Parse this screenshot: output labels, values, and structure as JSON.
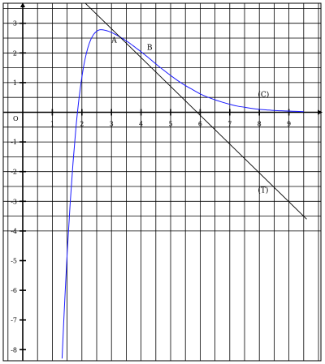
{
  "chart_data": {
    "type": "line",
    "title": "",
    "xlabel": "",
    "ylabel": "",
    "xlim": [
      -0.7,
      9.8
    ],
    "ylim": [
      -8.3,
      3.7
    ],
    "grid": true,
    "origin_label": "O",
    "x_ticks": [
      {
        "value": 1,
        "label": "1"
      },
      {
        "value": 2,
        "label": "2"
      },
      {
        "value": 3,
        "label": "3"
      },
      {
        "value": 4,
        "label": "4"
      },
      {
        "value": 5,
        "label": "5"
      },
      {
        "value": 6,
        "label": "6"
      },
      {
        "value": 7,
        "label": "7"
      },
      {
        "value": 8,
        "label": "8"
      },
      {
        "value": 9,
        "label": "9"
      }
    ],
    "y_ticks": [
      {
        "value": 3,
        "label": "3"
      },
      {
        "value": 2,
        "label": "2"
      },
      {
        "value": 1,
        "label": "1"
      },
      {
        "value": -1,
        "label": "-1"
      },
      {
        "value": -2,
        "label": "-2"
      },
      {
        "value": -3,
        "label": "-3"
      },
      {
        "value": -4,
        "label": "-4"
      },
      {
        "value": -5,
        "label": "-5"
      },
      {
        "value": -6,
        "label": "-6"
      },
      {
        "value": -7,
        "label": "-7"
      },
      {
        "value": -8,
        "label": "-8"
      }
    ],
    "series": [
      {
        "label": "(C)",
        "color": "#1a1aff",
        "x": [
          1.33,
          1.4,
          1.5,
          1.6,
          1.7,
          1.8,
          1.9,
          2.0,
          2.1,
          2.2,
          2.3,
          2.4,
          2.5,
          2.6,
          2.7,
          2.8,
          2.9,
          3.0,
          3.1,
          3.25,
          3.4,
          3.6,
          3.8,
          4.0,
          4.25,
          4.5,
          4.75,
          5.0,
          5.25,
          5.5,
          5.75,
          6.0,
          6.25,
          6.5,
          6.75,
          7.0,
          7.25,
          7.5,
          7.75,
          8.0,
          8.25,
          8.5,
          8.75,
          9.0,
          9.25,
          9.5
        ],
        "y": [
          -8.3,
          -6.76,
          -4.8,
          -3.12,
          -1.7,
          -0.5,
          0.45,
          1.19,
          1.76,
          2.17,
          2.45,
          2.63,
          2.73,
          2.78,
          2.78,
          2.76,
          2.73,
          2.69,
          2.64,
          2.56,
          2.47,
          2.34,
          2.19,
          2.04,
          1.84,
          1.63,
          1.43,
          1.24,
          1.06,
          0.9,
          0.76,
          0.62,
          0.51,
          0.42,
          0.34,
          0.27,
          0.21,
          0.17,
          0.13,
          0.1,
          0.08,
          0.06,
          0.05,
          0.04,
          0.03,
          0.02
        ]
      },
      {
        "label": "(T)",
        "color": "#000000",
        "x": [
          2.1,
          9.6
        ],
        "y": [
          3.69,
          -3.6
        ]
      }
    ],
    "annotations": [
      {
        "text": "A",
        "x": 3.0,
        "y": 2.35
      },
      {
        "text": "B",
        "x": 4.2,
        "y": 2.1
      },
      {
        "text": "(C)",
        "x": 7.95,
        "y": 0.52
      },
      {
        "text": "(T)",
        "x": 7.95,
        "y": -2.7
      }
    ]
  }
}
